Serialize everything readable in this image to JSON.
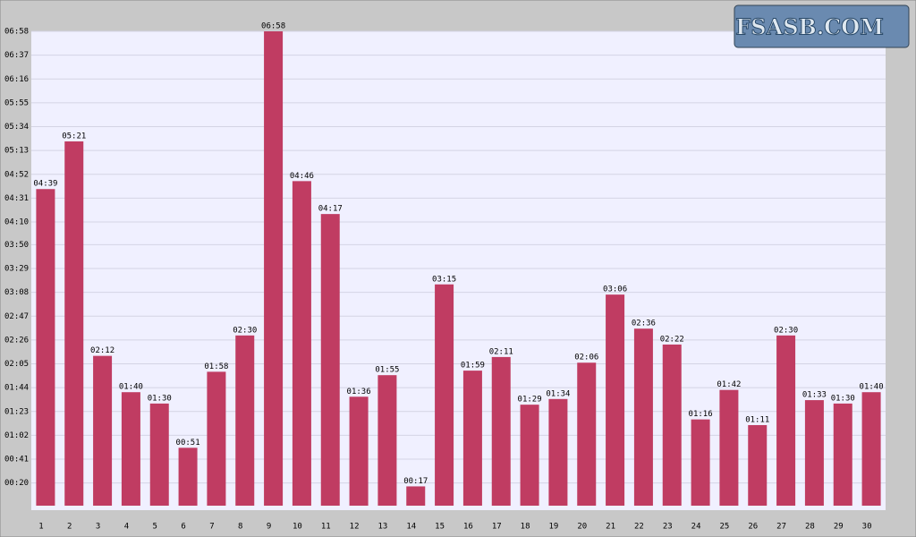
{
  "chart_data": {
    "type": "bar",
    "categories": [
      "1",
      "2",
      "3",
      "4",
      "5",
      "6",
      "7",
      "8",
      "9",
      "10",
      "11",
      "12",
      "13",
      "14",
      "15",
      "16",
      "17",
      "18",
      "19",
      "20",
      "21",
      "22",
      "23",
      "24",
      "25",
      "26",
      "27",
      "28",
      "29",
      "30"
    ],
    "values": [
      279,
      321,
      132,
      100,
      90,
      51,
      118,
      150,
      418,
      286,
      257,
      96,
      115,
      17,
      195,
      119,
      131,
      89,
      94,
      126,
      186,
      156,
      142,
      76,
      102,
      71,
      150,
      93,
      90,
      100
    ],
    "value_labels": [
      "04:39",
      "05:21",
      "02:12",
      "01:40",
      "01:30",
      "00:51",
      "01:58",
      "02:30",
      "06:58",
      "04:46",
      "04:17",
      "01:36",
      "01:55",
      "00:17",
      "03:15",
      "01:59",
      "02:11",
      "01:29",
      "01:34",
      "02:06",
      "03:06",
      "02:36",
      "02:22",
      "01:16",
      "01:42",
      "01:11",
      "02:30",
      "01:33",
      "01:30",
      "01:40"
    ],
    "color": "#c03c62",
    "ylim": [
      0,
      418
    ],
    "yticks": [
      {
        "value": 20,
        "label": "00:20"
      },
      {
        "value": 41,
        "label": "00:41"
      },
      {
        "value": 62,
        "label": "01:02"
      },
      {
        "value": 83,
        "label": "01:23"
      },
      {
        "value": 104,
        "label": "01:44"
      },
      {
        "value": 125,
        "label": "02:05"
      },
      {
        "value": 146,
        "label": "02:26"
      },
      {
        "value": 167,
        "label": "02:47"
      },
      {
        "value": 188,
        "label": "03:08"
      },
      {
        "value": 209,
        "label": "03:29"
      },
      {
        "value": 230,
        "label": "03:50"
      },
      {
        "value": 250,
        "label": "04:10"
      },
      {
        "value": 271,
        "label": "04:31"
      },
      {
        "value": 292,
        "label": "04:52"
      },
      {
        "value": 313,
        "label": "05:13"
      },
      {
        "value": 334,
        "label": "05:34"
      },
      {
        "value": 355,
        "label": "05:55"
      },
      {
        "value": 376,
        "label": "06:16"
      },
      {
        "value": 397,
        "label": "06:37"
      },
      {
        "value": 418,
        "label": "06:58"
      }
    ],
    "grid": true
  },
  "logo": "FSASB.COM"
}
